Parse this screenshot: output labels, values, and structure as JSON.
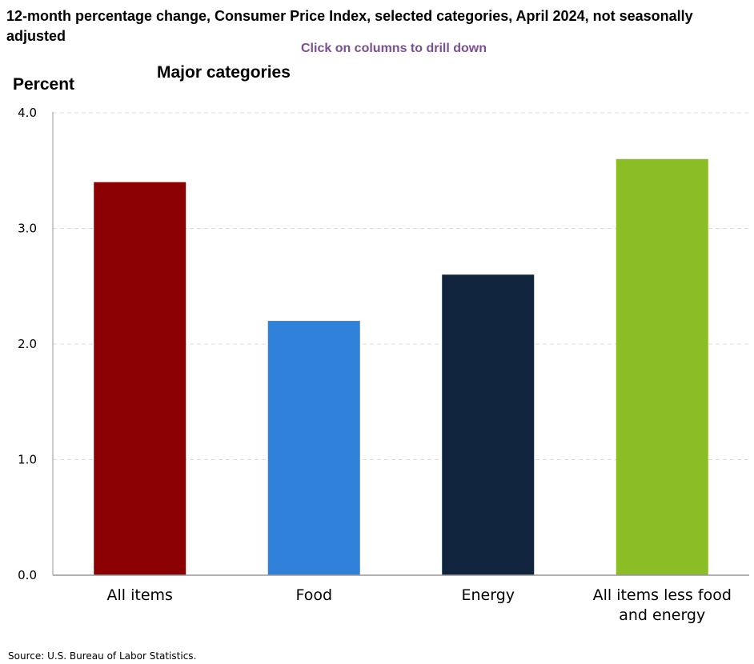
{
  "header": {
    "title": "12-month percentage change, Consumer Price Index, selected categories, April 2024, not seasonally adjusted",
    "drill_hint": "Click on columns to drill down"
  },
  "footer": {
    "source": "Source: U.S. Bureau of Labor Statistics."
  },
  "chart_data": {
    "type": "bar",
    "title": "Major categories",
    "xlabel": "",
    "ylabel": "Percent",
    "categories": [
      "All items",
      "Food",
      "Energy",
      "All items less food and energy"
    ],
    "category_lines": [
      [
        "All items"
      ],
      [
        "Food"
      ],
      [
        "Energy"
      ],
      [
        "All items less food",
        "and energy"
      ]
    ],
    "values": [
      3.4,
      2.2,
      2.6,
      3.6
    ],
    "colors": [
      "#8b0000",
      "#2f80d9",
      "#11243d",
      "#8bbd24"
    ],
    "ylim": [
      0,
      4
    ],
    "yticks": [
      "0.0",
      "1.0",
      "2.0",
      "3.0",
      "4.0"
    ],
    "grid": true,
    "legend": "none"
  }
}
